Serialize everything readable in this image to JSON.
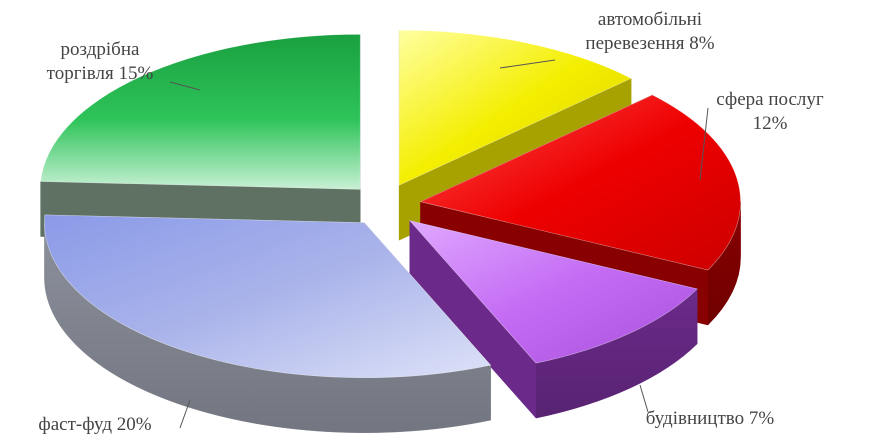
{
  "chart_data": {
    "type": "pie",
    "title": "",
    "legend": "none",
    "labels_layout": "outside with leader lines",
    "slices": [
      {
        "label": "автомобільні перевезення",
        "label_lines": [
          "автомобільні",
          "перевезення  8%"
        ],
        "value": 8,
        "color": "#f4ee00",
        "side": "#a8a200"
      },
      {
        "label": "сфера послуг",
        "label_lines": [
          "сфера послуг",
          "12%"
        ],
        "value": 12,
        "color": "#ee0000",
        "side": "#880000"
      },
      {
        "label": "будівництво",
        "label_lines": [
          "будівництво 7%"
        ],
        "value": 7,
        "color": "#c46cf4",
        "side": "#6b2a8a"
      },
      {
        "label": "фаст-фуд",
        "label_lines": [
          "фаст-фуд 20%"
        ],
        "value": 20,
        "color": "#aab4ea",
        "side": "#8c909c"
      },
      {
        "label": "роздрібна торгівля",
        "label_lines": [
          "роздрібна",
          "торгівля 15%"
        ],
        "value": 15,
        "color": "#2ec45a",
        "side": "#5f7163"
      }
    ]
  }
}
